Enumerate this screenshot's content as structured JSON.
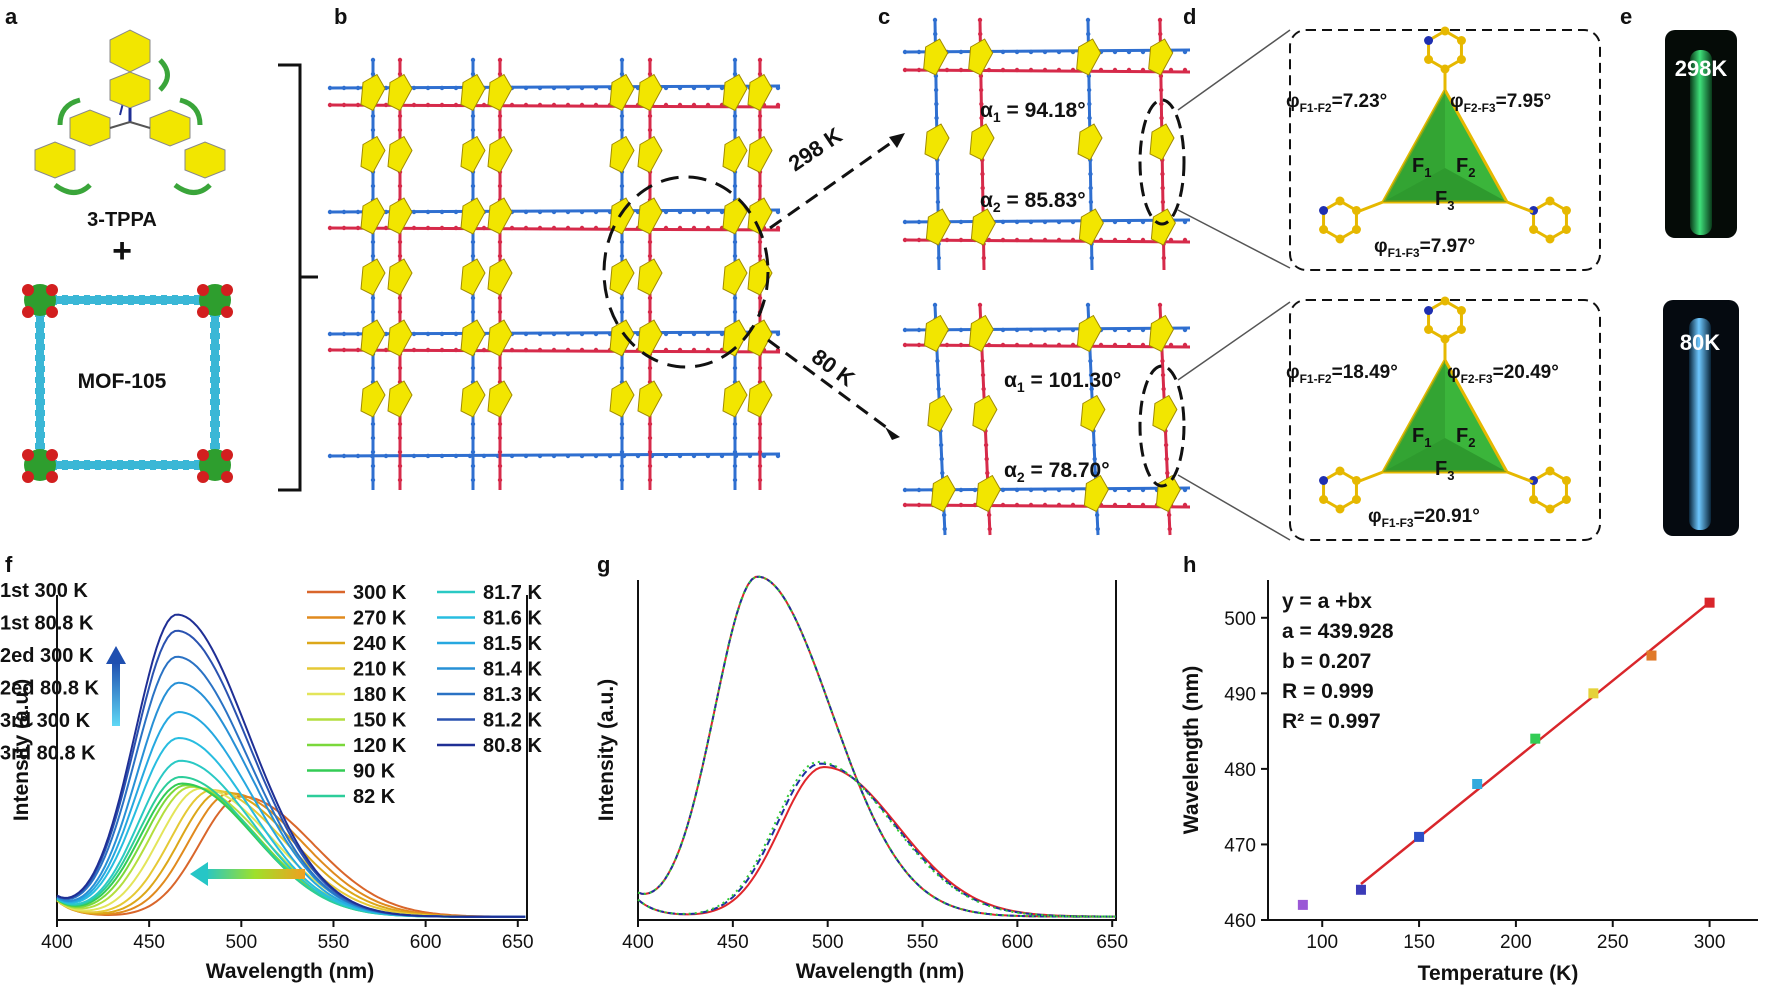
{
  "panels": {
    "a": {
      "label": "a",
      "ligand_name": "3-TPPA",
      "plus": "+",
      "mof_name": "MOF-105"
    },
    "b": {
      "label": "b"
    },
    "c": {
      "label": "c",
      "arrow_298": "298 K",
      "arrow_80": "80 K",
      "top": {
        "alpha1": "α",
        "alpha1_sub": "1",
        "alpha1_val": " = 94.18°",
        "alpha2": "α",
        "alpha2_sub": "2",
        "alpha2_val": " = 85.83°"
      },
      "bottom": {
        "alpha1": "α",
        "alpha1_sub": "1",
        "alpha1_val": " = 101.30°",
        "alpha2": "α",
        "alpha2_sub": "2",
        "alpha2_val": " = 78.70°"
      }
    },
    "d": {
      "label": "d",
      "top": {
        "phi": "φ",
        "f1f2": "F1-F2",
        "f1f2_val": "=7.23°",
        "f2f3": "F2-F3",
        "f2f3_val": "=7.95°",
        "f1f3": "F1-F3",
        "f1f3_val": "=7.97°",
        "F1": "F",
        "F1s": "1",
        "F2": "F",
        "F2s": "2",
        "F3": "F",
        "F3s": "3"
      },
      "bottom": {
        "phi": "φ",
        "f1f2": "F1-F2",
        "f1f2_val": "=18.49°",
        "f2f3": "F2-F3",
        "f2f3_val": "=20.49°",
        "f1f3": "F1-F3",
        "f1f3_val": "=20.91°",
        "F1": "F",
        "F1s": "1",
        "F2": "F",
        "F2s": "2",
        "F3": "F",
        "F3s": "3"
      }
    },
    "e": {
      "label": "e",
      "top_temp": "298K",
      "bottom_temp": "80K"
    }
  },
  "chart_data": [
    {
      "id": "f",
      "label": "f",
      "type": "line",
      "xlabel": "Wavelength (nm)",
      "ylabel": "Intensity (a.u.)",
      "xlim": [
        400,
        655
      ],
      "xticks": [
        "400",
        "450",
        "500",
        "550",
        "600",
        "650"
      ],
      "ylim": [
        0,
        1.0
      ],
      "series": [
        {
          "name": "300 K",
          "color": "#d9662b",
          "peak": 500,
          "amp": 0.37
        },
        {
          "name": "270 K",
          "color": "#e08a1e",
          "peak": 494,
          "amp": 0.38
        },
        {
          "name": "240 K",
          "color": "#dca719",
          "peak": 489,
          "amp": 0.385
        },
        {
          "name": "210 K",
          "color": "#e5c935",
          "peak": 484,
          "amp": 0.39
        },
        {
          "name": "180 K",
          "color": "#e3e55a",
          "peak": 478,
          "amp": 0.395
        },
        {
          "name": "150 K",
          "color": "#b4de3e",
          "peak": 473,
          "amp": 0.4
        },
        {
          "name": "120 K",
          "color": "#7ad83b",
          "peak": 470,
          "amp": 0.405
        },
        {
          "name": "90 K",
          "color": "#33cc55",
          "peak": 468,
          "amp": 0.41
        },
        {
          "name": "82 K",
          "color": "#2ccd9a",
          "peak": 467,
          "amp": 0.43
        },
        {
          "name": "81.7 K",
          "color": "#2ac9c4",
          "peak": 467,
          "amp": 0.48
        },
        {
          "name": "81.6 K",
          "color": "#28bde0",
          "peak": 466,
          "amp": 0.55
        },
        {
          "name": "81.5 K",
          "color": "#26a8e0",
          "peak": 466,
          "amp": 0.63
        },
        {
          "name": "81.4 K",
          "color": "#2790d6",
          "peak": 466,
          "amp": 0.72
        },
        {
          "name": "81.3 K",
          "color": "#2a72c4",
          "peak": 465,
          "amp": 0.8
        },
        {
          "name": "81.2 K",
          "color": "#2a52b0",
          "peak": 465,
          "amp": 0.88
        },
        {
          "name": "80.8 K",
          "color": "#1f2f95",
          "peak": 465,
          "amp": 0.93
        }
      ]
    },
    {
      "id": "g",
      "label": "g",
      "type": "line",
      "xlabel": "Wavelength (nm)",
      "ylabel": "Intensity (a.u.)",
      "xlim": [
        400,
        652
      ],
      "xticks": [
        "400",
        "450",
        "500",
        "550",
        "600",
        "650"
      ],
      "ylim": [
        0,
        1.0
      ],
      "series": [
        {
          "name": "1st 300 K",
          "color": "#e0262b",
          "style": "solid",
          "peak": 498,
          "amp": 0.44
        },
        {
          "name": "1st 80.8 K",
          "color": "#e0262b",
          "style": "solid",
          "peak": 463,
          "amp": 1.0
        },
        {
          "name": "2ed 300 K",
          "color": "#1f2fa0",
          "style": "dashed",
          "peak": 496,
          "amp": 0.45
        },
        {
          "name": "2ed 80.8 K",
          "color": "#1f2fa0",
          "style": "dashed",
          "peak": 463,
          "amp": 1.0
        },
        {
          "name": "3rd 300 K",
          "color": "#33cc33",
          "style": "dotted",
          "peak": 495,
          "amp": 0.455
        },
        {
          "name": "3rd 80.8 K",
          "color": "#33cc33",
          "style": "dotted",
          "peak": 463,
          "amp": 1.0
        }
      ]
    },
    {
      "id": "h",
      "label": "h",
      "type": "scatter",
      "xlabel": "Temperature (K)",
      "ylabel": "Wavelength (nm)",
      "xlim": [
        72,
        325
      ],
      "ylim": [
        460,
        505
      ],
      "xticks": [
        100,
        150,
        200,
        250,
        300
      ],
      "yticks": [
        460,
        470,
        480,
        490,
        500
      ],
      "points": [
        {
          "x": 90,
          "y": 462,
          "color": "#9b59d6"
        },
        {
          "x": 120,
          "y": 464,
          "color": "#3b3bb8"
        },
        {
          "x": 150,
          "y": 471,
          "color": "#2b4fc8"
        },
        {
          "x": 180,
          "y": 478,
          "color": "#33aadd"
        },
        {
          "x": 210,
          "y": 484,
          "color": "#33cc55"
        },
        {
          "x": 240,
          "y": 490,
          "color": "#e5d23a"
        },
        {
          "x": 270,
          "y": 495,
          "color": "#e07a2a"
        },
        {
          "x": 300,
          "y": 502,
          "color": "#d9262b"
        }
      ],
      "fit": {
        "x_from": 120,
        "x_to": 300,
        "a": 439.928,
        "b": 0.207,
        "color": "#d9262b"
      },
      "annotation": [
        "y = a +bx",
        "a = 439.928",
        "b = 0.207",
        "R = 0.999",
        "R² = 0.997"
      ]
    }
  ]
}
